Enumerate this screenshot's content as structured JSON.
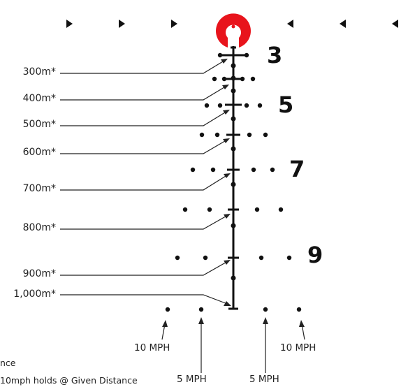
{
  "distances": [
    "300m*",
    "400m*",
    "500m*",
    "600m*",
    "700m*",
    "800m*",
    "900m*",
    "1,000m*"
  ],
  "magnifications": [
    "3",
    "5",
    "7",
    "9"
  ],
  "wind": {
    "left_10": "10 MPH",
    "right_10": "10 MPH",
    "left_5": "5 MPH",
    "right_5": "5 MPH"
  },
  "notes": {
    "line1": "nce",
    "line2": "10mph holds @ Given Distance"
  },
  "colors": {
    "center_ring": "#e8141c",
    "ink": "#111111"
  }
}
